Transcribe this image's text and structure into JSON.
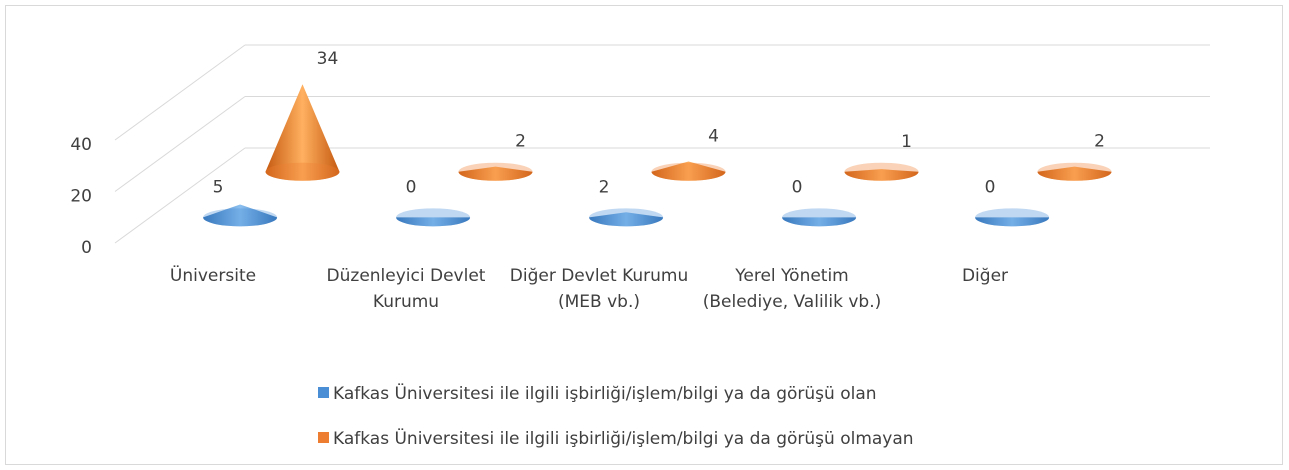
{
  "chart_data": {
    "type": "cone3d",
    "categories": [
      "Üniversite",
      "Düzenleyici Devlet Kurumu",
      "Diğer Devlet Kurumu (MEB vb.)",
      "Yerel Yönetim (Belediye, Valilik vb.)",
      "Diğer"
    ],
    "series": [
      {
        "name": "Kafkas Üniversitesi ile  ilgili işbirliği/işlem/bilgi ya da görüşü olan",
        "color": "#4a8fd6",
        "values": [
          5,
          0,
          2,
          0,
          0
        ]
      },
      {
        "name": "Kafkas Üniversitesi ile  ilgili işbirliği/işlem/bilgi ya da görüşü olmayan",
        "color": "#ed7d31",
        "values": [
          34,
          2,
          4,
          1,
          2
        ]
      }
    ],
    "ylim": [
      0,
      40
    ],
    "yticks": [
      0,
      20,
      40
    ],
    "grid": true,
    "legend": "bottom"
  }
}
